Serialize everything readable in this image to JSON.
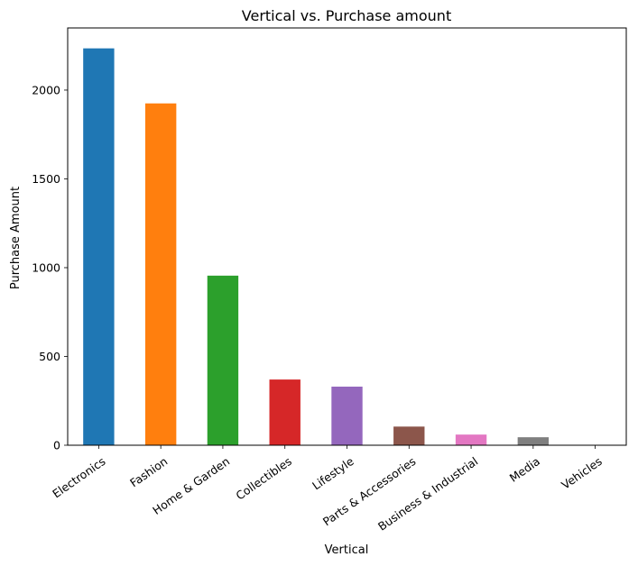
{
  "chart_data": {
    "type": "bar",
    "title": "Vertical vs. Purchase amount",
    "xlabel": "Vertical",
    "ylabel": "Purchase Amount",
    "categories": [
      "Electronics",
      "Fashion",
      "Home & Garden",
      "Collectibles",
      "Lifestyle",
      "Parts & Accessories",
      "Business & Industrial",
      "Media",
      "Vehicles"
    ],
    "values": [
      2235,
      1925,
      955,
      370,
      330,
      105,
      60,
      45,
      2
    ],
    "colors": [
      "#1f77b4",
      "#ff7f0e",
      "#2ca02c",
      "#d62728",
      "#9467bd",
      "#8c564b",
      "#e377c2",
      "#7f7f7f",
      "#bcbd22"
    ],
    "yticks": [
      0,
      500,
      1000,
      1500,
      2000
    ],
    "ylim": [
      0,
      2350
    ],
    "grid": false,
    "legend": "none"
  }
}
